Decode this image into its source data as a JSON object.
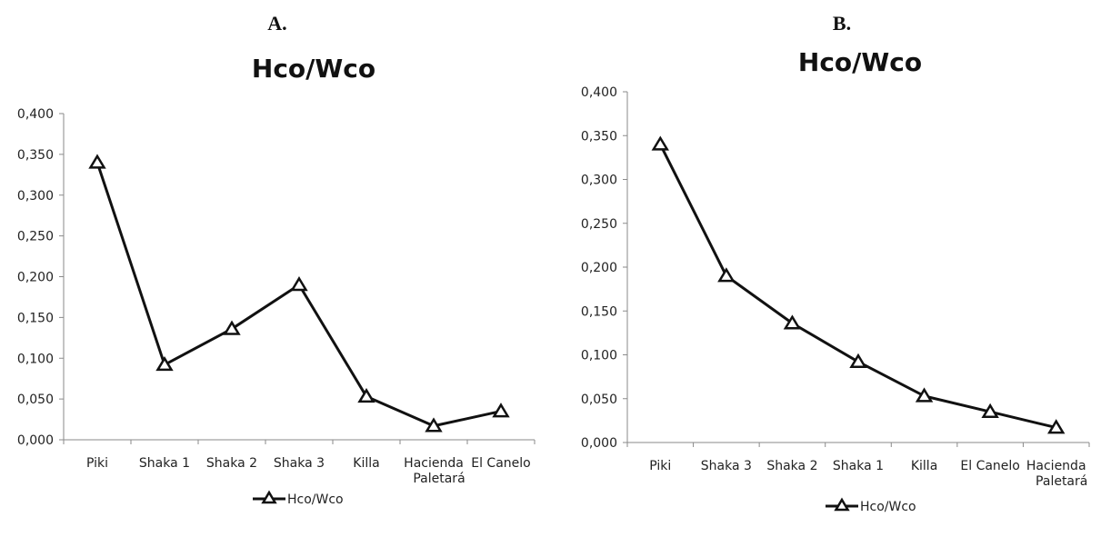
{
  "chart_data": [
    {
      "type": "line",
      "panel": "A.",
      "title": "Hco/Wco",
      "categories": [
        "Piki",
        "Shaka 1",
        "Shaka 2",
        "Shaka 3",
        "Killa",
        "Hacienda Paletará",
        "El Canelo"
      ],
      "series": [
        {
          "name": "Hco/Wco",
          "values": [
            0.34,
            0.092,
            0.136,
            0.19,
            0.053,
            0.017,
            0.035
          ],
          "marker": "triangle-open"
        }
      ],
      "ylim": [
        0,
        0.4
      ],
      "yticks": [
        "0,000",
        "0,050",
        "0,100",
        "0,150",
        "0,200",
        "0,250",
        "0,300",
        "0,350",
        "0,400"
      ],
      "xlabel": "",
      "ylabel": "",
      "grid": false,
      "legend": "bottom"
    },
    {
      "type": "line",
      "panel": "B.",
      "title": "Hco/Wco",
      "categories": [
        "Piki",
        "Shaka 3",
        "Shaka 2",
        "Shaka 1",
        "Killa",
        "El Canelo",
        "Hacienda Paletará"
      ],
      "series": [
        {
          "name": "Hco/Wco",
          "values": [
            0.34,
            0.19,
            0.136,
            0.092,
            0.053,
            0.035,
            0.017
          ],
          "marker": "triangle-open"
        }
      ],
      "ylim": [
        0,
        0.4
      ],
      "yticks": [
        "0,000",
        "0,050",
        "0,100",
        "0,150",
        "0,200",
        "0,250",
        "0,300",
        "0,350",
        "0,400"
      ],
      "xlabel": "",
      "ylabel": "",
      "grid": false,
      "legend": "bottom"
    }
  ]
}
